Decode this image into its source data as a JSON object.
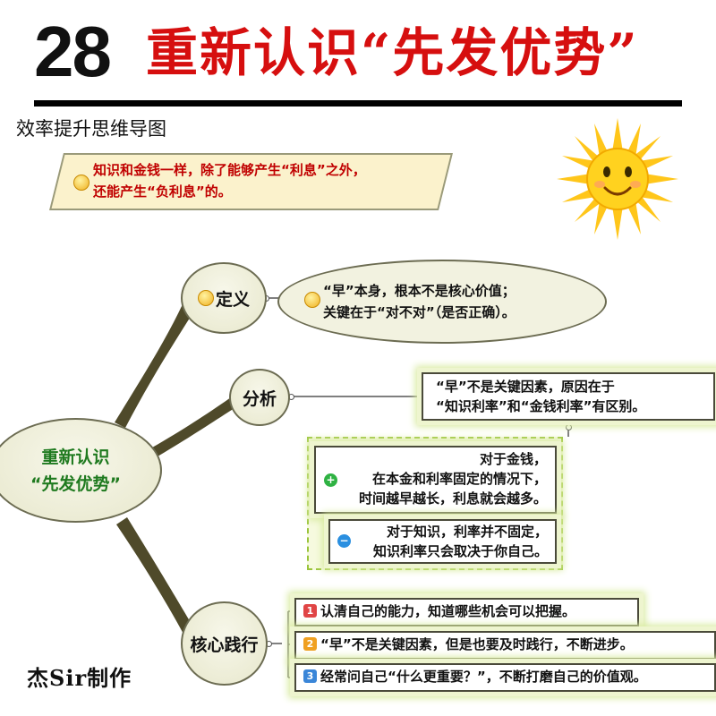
{
  "header": {
    "number": "28",
    "title": "重新认识“先发优势”",
    "subtitle": "效率提升思维导图"
  },
  "intro": {
    "line1": "知识和金钱一样，除了能够产生“利息”之外，",
    "line2": "还能产生“负利息”的。"
  },
  "central": {
    "line1": "重新认识",
    "line2": "“先发优势”"
  },
  "branches": {
    "definition": {
      "label": "定义",
      "line1": "“早”本身，根本不是核心价值；",
      "line2": "关键在于“对不对”（是否正确）。"
    },
    "analysis": {
      "label": "分析",
      "summary_line1": "“早”不是关键因素，原因在于",
      "summary_line2": "“知识利率”和“金钱利率”有区别。",
      "money": {
        "line1": "对于金钱，",
        "line2": "在本金和利率固定的情况下，",
        "line3": "时间越早越长，利息就会越多。"
      },
      "knowledge": {
        "line1": "对于知识，利率并不固定，",
        "line2": "知识利率只会取决于你自己。"
      }
    },
    "core": {
      "label": "核心践行",
      "items": [
        {
          "num": "1",
          "text": "认清自己的能力，知道哪些机会可以把握。"
        },
        {
          "num": "2",
          "text": "“早”不是关键因素，但是也要及时践行，不断进步。"
        },
        {
          "num": "3",
          "text": "经常问自己“什么更重要？”，不断打磨自己的价值观。"
        }
      ]
    }
  },
  "credit": "杰Sir制作",
  "colors": {
    "title_red": "#d60f0f",
    "central_green": "#1f7a1f",
    "intro_red": "#c00000",
    "sun_yellow": "#ffd21f"
  }
}
